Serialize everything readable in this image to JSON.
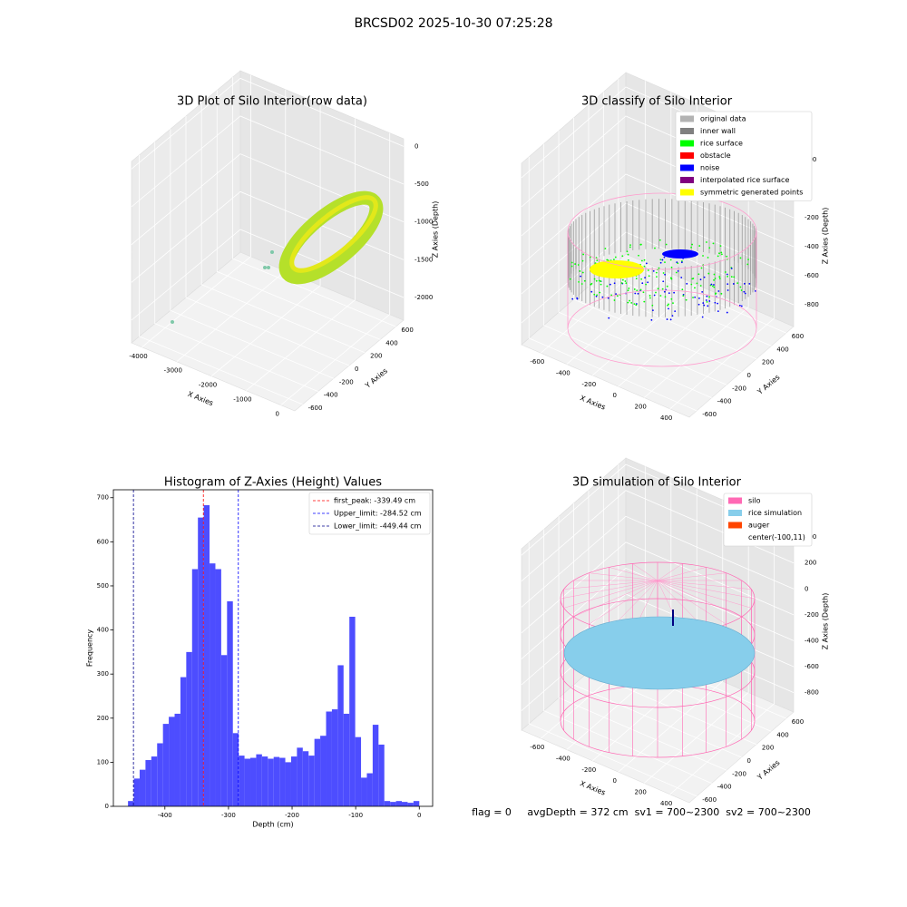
{
  "suptitle": "BRCSD02 2025-10-30 07:25:28",
  "chart_data": [
    {
      "type": "scatter3d",
      "title": "3D Plot of Silo Interior(row data)",
      "xlabel": "X Axies",
      "ylabel": "Y Axies",
      "zlabel": "Z Axies (Depth)",
      "xlim": [
        -4300,
        400
      ],
      "ylim": [
        -700,
        700
      ],
      "zlim": [
        -2300,
        100
      ],
      "xticks": [
        -4000,
        -3000,
        -2000,
        -1000,
        0
      ],
      "yticks": [
        -600,
        -400,
        -200,
        0,
        200,
        400,
        600
      ],
      "zticks": [
        -2000,
        -1500,
        -1000,
        -500,
        0
      ]
    },
    {
      "type": "scatter3d",
      "title": "3D classify of Silo Interior",
      "xlabel": "X Axies",
      "ylabel": "Y Axies",
      "zlabel": "Z Axies (Depth)",
      "xlim": [
        -750,
        550
      ],
      "ylim": [
        -700,
        700
      ],
      "zlim": [
        -950,
        300
      ],
      "xticks": [
        -600,
        -400,
        -200,
        0,
        200,
        400
      ],
      "yticks": [
        -600,
        -400,
        -200,
        0,
        200,
        400,
        600
      ],
      "zticks": [
        -800,
        -600,
        -400,
        -200,
        0,
        200
      ],
      "legend": {
        "loc": "upper right",
        "entries": [
          {
            "name": "original data",
            "color": "#b3b3b3"
          },
          {
            "name": "inner wall",
            "color": "#808080"
          },
          {
            "name": "rice surface",
            "color": "#00ff00"
          },
          {
            "name": "obstacle",
            "color": "#ff0000"
          },
          {
            "name": "noise",
            "color": "#0000ff"
          },
          {
            "name": "interpolated rice surface",
            "color": "#800080"
          },
          {
            "name": "symmetric generated points",
            "color": "#ffff00"
          }
        ]
      }
    },
    {
      "type": "histogram",
      "title": "Histogram of Z-Axies (Height) Values",
      "xlabel": "Depth (cm)",
      "ylabel": "Frequency",
      "color": "#4d4dff",
      "bins": [
        -458,
        -448.84,
        -439.68,
        -430.52,
        -421.36,
        -412.2,
        -403.04,
        -393.88,
        -384.72,
        -375.56,
        -366.4,
        -357.24,
        -348.08,
        -338.92,
        -329.76,
        -320.6,
        -311.44,
        -302.28,
        -293.12,
        -283.96,
        -274.8,
        -265.64,
        -256.48,
        -247.32,
        -238.16,
        -229,
        -219.84,
        -210.68,
        -201.52,
        -192.36,
        -183.2,
        -174.04,
        -164.88,
        -155.72,
        -146.56,
        -137.4,
        -128.24,
        -119.08,
        -109.92,
        -100.76,
        -91.6,
        -82.44,
        -73.28,
        -64.12,
        -54.96,
        -45.8,
        -36.64,
        -27.48,
        -18.32,
        -9.16,
        0
      ],
      "counts": [
        12,
        63,
        83,
        105,
        113,
        143,
        187,
        203,
        210,
        293,
        350,
        538,
        655,
        683,
        551,
        538,
        343,
        465,
        166,
        115,
        108,
        110,
        118,
        113,
        108,
        112,
        110,
        100,
        113,
        133,
        125,
        115,
        153,
        160,
        215,
        220,
        320,
        210,
        430,
        157,
        65,
        75,
        185,
        140,
        12,
        10,
        12,
        10,
        8,
        12
      ],
      "lines": [
        {
          "name": "first_peak: -339.49 cm",
          "value": -339.49,
          "color": "#ff0000"
        },
        {
          "name": "Upper_limit: -284.52 cm",
          "value": -284.52,
          "color": "#0000ff"
        },
        {
          "name": "Lower_limit: -449.44 cm",
          "value": -449.44,
          "color": "#00008b"
        }
      ],
      "legend": {
        "loc": "upper right"
      },
      "xlim": [
        -481,
        21
      ],
      "ylim": [
        0,
        718
      ],
      "xticks": [
        -400,
        -300,
        -200,
        -100,
        0
      ],
      "yticks": [
        0,
        100,
        200,
        300,
        400,
        500,
        600,
        700
      ]
    },
    {
      "type": "scatter3d",
      "title": "3D simulation of Silo Interior",
      "xlabel": "X Axies",
      "ylabel": "Y Axies",
      "zlabel": "Z Axies (Depth)",
      "xlim": [
        -750,
        550
      ],
      "ylim": [
        -700,
        700
      ],
      "zlim": [
        -950,
        450
      ],
      "xticks": [
        -600,
        -400,
        -200,
        0,
        200,
        400
      ],
      "yticks": [
        -600,
        -400,
        -200,
        0,
        200,
        400,
        600
      ],
      "zticks": [
        -800,
        -600,
        -400,
        -200,
        0,
        200,
        400
      ],
      "legend": {
        "loc": "upper right",
        "entries": [
          {
            "name": "silo",
            "color": "#ff69b4"
          },
          {
            "name": "rice simulation",
            "color": "#87ceeb"
          },
          {
            "name": "auger",
            "color": "#ff4500"
          },
          {
            "name": "center(-100,11)"
          }
        ]
      },
      "annotation": "flag = 0     avgDepth = 372 cm  sv1 = 700~2300  sv2 = 700~2300"
    }
  ]
}
